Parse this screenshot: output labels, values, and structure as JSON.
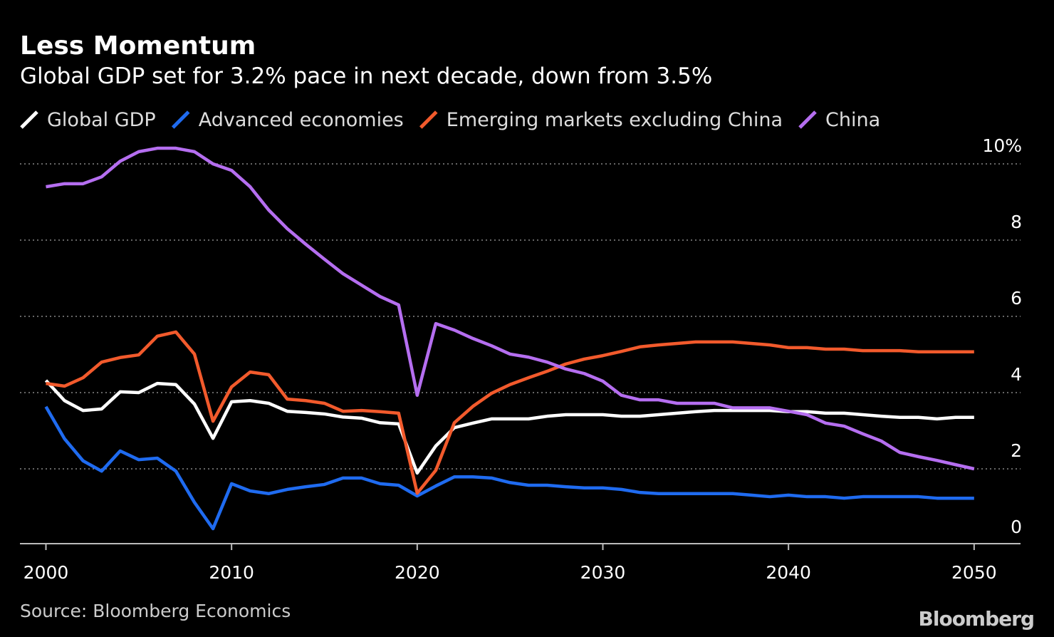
{
  "chart_data": {
    "type": "line",
    "title": "Less Momentum",
    "subtitle": "Global GDP set for 3.2% pace in next decade, down from 3.5%",
    "source": "Source: Bloomberg Economics",
    "brand": "Bloomberg",
    "x": [
      2000,
      2001,
      2002,
      2003,
      2004,
      2005,
      2006,
      2007,
      2008,
      2009,
      2010,
      2011,
      2012,
      2013,
      2014,
      2015,
      2016,
      2017,
      2018,
      2019,
      2020,
      2021,
      2022,
      2023,
      2024,
      2025,
      2026,
      2027,
      2028,
      2029,
      2030,
      2031,
      2032,
      2033,
      2034,
      2035,
      2036,
      2037,
      2038,
      2039,
      2040,
      2041,
      2042,
      2043,
      2044,
      2045,
      2046,
      2047,
      2048,
      2049,
      2050
    ],
    "series": [
      {
        "name": "Global GDP",
        "color": "#ffffff",
        "values": [
          4.32,
          3.79,
          3.53,
          3.57,
          4.02,
          4.0,
          4.24,
          4.21,
          3.7,
          2.8,
          3.76,
          3.79,
          3.72,
          3.51,
          3.48,
          3.44,
          3.36,
          3.33,
          3.21,
          3.18,
          1.89,
          2.6,
          3.08,
          3.2,
          3.31,
          3.31,
          3.31,
          3.38,
          3.42,
          3.42,
          3.42,
          3.38,
          3.38,
          3.42,
          3.46,
          3.5,
          3.53,
          3.53,
          3.53,
          3.53,
          3.5,
          3.5,
          3.46,
          3.46,
          3.42,
          3.38,
          3.35,
          3.35,
          3.31,
          3.35,
          3.35
        ]
      },
      {
        "name": "Advanced economies",
        "color": "#1f6bf0",
        "values": [
          3.63,
          2.79,
          2.21,
          1.94,
          2.47,
          2.24,
          2.28,
          1.94,
          1.12,
          0.43,
          1.61,
          1.42,
          1.35,
          1.46,
          1.53,
          1.59,
          1.76,
          1.76,
          1.61,
          1.57,
          1.29,
          1.55,
          1.79,
          1.79,
          1.76,
          1.64,
          1.57,
          1.57,
          1.53,
          1.5,
          1.5,
          1.46,
          1.38,
          1.35,
          1.35,
          1.35,
          1.35,
          1.35,
          1.31,
          1.27,
          1.31,
          1.27,
          1.27,
          1.23,
          1.27,
          1.27,
          1.27,
          1.27,
          1.23,
          1.23,
          1.23
        ]
      },
      {
        "name": "Emerging markets excluding China",
        "color": "#f25a2c",
        "values": [
          4.24,
          4.17,
          4.39,
          4.8,
          4.92,
          4.99,
          5.48,
          5.59,
          5.01,
          3.25,
          4.15,
          4.54,
          4.47,
          3.83,
          3.79,
          3.72,
          3.51,
          3.53,
          3.5,
          3.46,
          1.36,
          1.96,
          3.21,
          3.64,
          3.98,
          4.21,
          4.39,
          4.56,
          4.75,
          4.88,
          4.97,
          5.08,
          5.2,
          5.25,
          5.29,
          5.33,
          5.33,
          5.33,
          5.29,
          5.25,
          5.18,
          5.18,
          5.14,
          5.14,
          5.1,
          5.1,
          5.1,
          5.07,
          5.07,
          5.07,
          5.07
        ]
      },
      {
        "name": "China",
        "color": "#b56ef0",
        "values": [
          9.4,
          9.48,
          9.48,
          9.66,
          10.07,
          10.32,
          10.41,
          10.41,
          10.32,
          10.0,
          9.83,
          9.4,
          8.79,
          8.3,
          7.89,
          7.5,
          7.12,
          6.82,
          6.52,
          6.3,
          3.93,
          5.81,
          5.64,
          5.42,
          5.23,
          5.01,
          4.93,
          4.8,
          4.62,
          4.5,
          4.3,
          3.93,
          3.81,
          3.81,
          3.72,
          3.72,
          3.72,
          3.6,
          3.6,
          3.6,
          3.51,
          3.42,
          3.2,
          3.12,
          2.92,
          2.73,
          2.43,
          2.32,
          2.22,
          2.11,
          2.0
        ]
      }
    ],
    "xlim": [
      1998.6,
      2052.5
    ],
    "xticks": [
      2000,
      2010,
      2020,
      2030,
      2040,
      2050
    ],
    "ylim": [
      0,
      10.5
    ],
    "yticks": [
      0,
      2,
      4,
      6,
      8,
      {
        "value": 10,
        "label": "10%"
      }
    ],
    "grid": true
  }
}
